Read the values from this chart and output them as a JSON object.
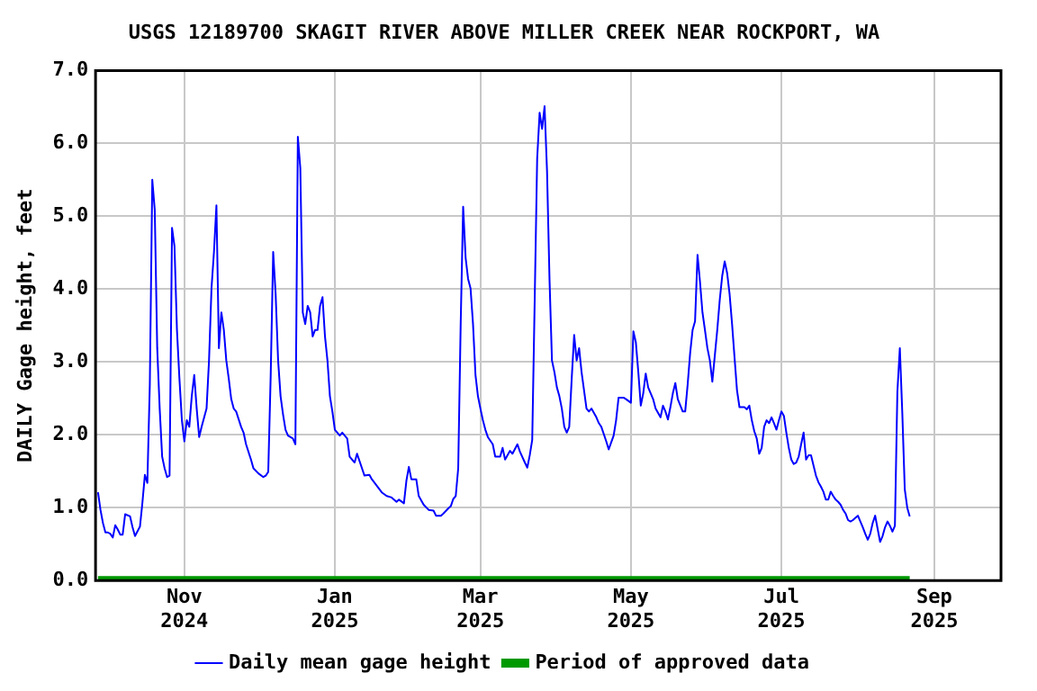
{
  "chart_data": {
    "type": "line",
    "title": "USGS 12189700 SKAGIT RIVER ABOVE MILLER CREEK NEAR ROCKPORT, WA",
    "ylabel": "DAILY Gage height, feet",
    "xlim": [
      "2024-09-26",
      "2025-09-28"
    ],
    "xticks": [
      {
        "value": "2024-11-01",
        "label": "Nov 2024"
      },
      {
        "value": "2025-01-01",
        "label": "Jan 2025"
      },
      {
        "value": "2025-03-01",
        "label": "Mar 2025"
      },
      {
        "value": "2025-05-01",
        "label": "May 2025"
      },
      {
        "value": "2025-07-01",
        "label": "Jul 2025"
      },
      {
        "value": "2025-09-01",
        "label": "Sep 2025"
      }
    ],
    "ylim": [
      0,
      7
    ],
    "yticks": [
      {
        "value": 0,
        "label": "0.0"
      },
      {
        "value": 1,
        "label": "1.0"
      },
      {
        "value": 2,
        "label": "2.0"
      },
      {
        "value": 3,
        "label": "3.0"
      },
      {
        "value": 4,
        "label": "4.0"
      },
      {
        "value": 5,
        "label": "5.0"
      },
      {
        "value": 6,
        "label": "6.0"
      },
      {
        "value": 7,
        "label": "7.0"
      }
    ],
    "grid": true,
    "legend": "bottom",
    "marker": "none",
    "line_style": "solid",
    "series": [
      {
        "name": "Daily mean gage height",
        "color": "#0000ff",
        "x": [
          "2024-09-27",
          "2024-09-28",
          "2024-09-29",
          "2024-09-30",
          "2024-10-01",
          "2024-10-02",
          "2024-10-03",
          "2024-10-04",
          "2024-10-05",
          "2024-10-06",
          "2024-10-07",
          "2024-10-08",
          "2024-10-10",
          "2024-10-11",
          "2024-10-12",
          "2024-10-14",
          "2024-10-15",
          "2024-10-16",
          "2024-10-17",
          "2024-10-18",
          "2024-10-19",
          "2024-10-20",
          "2024-10-21",
          "2024-10-22",
          "2024-10-23",
          "2024-10-24",
          "2024-10-25",
          "2024-10-26",
          "2024-10-27",
          "2024-10-28",
          "2024-10-29",
          "2024-10-30",
          "2024-10-31",
          "2024-11-01",
          "2024-11-02",
          "2024-11-03",
          "2024-11-04",
          "2024-11-05",
          "2024-11-06",
          "2024-11-07",
          "2024-11-08",
          "2024-11-10",
          "2024-11-11",
          "2024-11-12",
          "2024-11-13",
          "2024-11-14",
          "2024-11-15",
          "2024-11-16",
          "2024-11-17",
          "2024-11-18",
          "2024-11-19",
          "2024-11-20",
          "2024-11-21",
          "2024-11-22",
          "2024-11-24",
          "2024-11-25",
          "2024-11-26",
          "2024-11-28",
          "2024-11-29",
          "2024-12-01",
          "2024-12-03",
          "2024-12-04",
          "2024-12-05",
          "2024-12-06",
          "2024-12-07",
          "2024-12-08",
          "2024-12-09",
          "2024-12-10",
          "2024-12-11",
          "2024-12-12",
          "2024-12-13",
          "2024-12-15",
          "2024-12-16",
          "2024-12-17",
          "2024-12-18",
          "2024-12-19",
          "2024-12-20",
          "2024-12-21",
          "2024-12-22",
          "2024-12-23",
          "2024-12-24",
          "2024-12-25",
          "2024-12-26",
          "2024-12-27",
          "2024-12-28",
          "2024-12-29",
          "2024-12-30",
          "2024-12-31",
          "2025-01-01",
          "2025-01-03",
          "2025-01-04",
          "2025-01-06",
          "2025-01-07",
          "2025-01-09",
          "2025-01-10",
          "2025-01-12",
          "2025-01-13",
          "2025-01-15",
          "2025-01-16",
          "2025-01-18",
          "2025-01-20",
          "2025-01-22",
          "2025-01-24",
          "2025-01-26",
          "2025-01-27",
          "2025-01-29",
          "2025-01-30",
          "2025-01-31",
          "2025-02-01",
          "2025-02-03",
          "2025-02-04",
          "2025-02-06",
          "2025-02-08",
          "2025-02-10",
          "2025-02-11",
          "2025-02-13",
          "2025-02-14",
          "2025-02-16",
          "2025-02-17",
          "2025-02-18",
          "2025-02-19",
          "2025-02-20",
          "2025-02-21",
          "2025-02-22",
          "2025-02-23",
          "2025-02-24",
          "2025-02-25",
          "2025-02-26",
          "2025-02-27",
          "2025-02-28",
          "2025-03-01",
          "2025-03-02",
          "2025-03-03",
          "2025-03-04",
          "2025-03-06",
          "2025-03-07",
          "2025-03-09",
          "2025-03-10",
          "2025-03-11",
          "2025-03-13",
          "2025-03-14",
          "2025-03-16",
          "2025-03-17",
          "2025-03-19",
          "2025-03-20",
          "2025-03-21",
          "2025-03-22",
          "2025-03-23",
          "2025-03-24",
          "2025-03-25",
          "2025-03-26",
          "2025-03-27",
          "2025-03-28",
          "2025-03-29",
          "2025-03-30",
          "2025-03-31",
          "2025-04-01",
          "2025-04-02",
          "2025-04-03",
          "2025-04-04",
          "2025-04-05",
          "2025-04-06",
          "2025-04-07",
          "2025-04-08",
          "2025-04-09",
          "2025-04-10",
          "2025-04-11",
          "2025-04-12",
          "2025-04-13",
          "2025-04-14",
          "2025-04-15",
          "2025-04-17",
          "2025-04-18",
          "2025-04-19",
          "2025-04-21",
          "2025-04-22",
          "2025-04-24",
          "2025-04-25",
          "2025-04-26",
          "2025-04-28",
          "2025-04-29",
          "2025-05-01",
          "2025-05-02",
          "2025-05-03",
          "2025-05-04",
          "2025-05-05",
          "2025-05-06",
          "2025-05-07",
          "2025-05-08",
          "2025-05-10",
          "2025-05-11",
          "2025-05-13",
          "2025-05-14",
          "2025-05-15",
          "2025-05-16",
          "2025-05-17",
          "2025-05-18",
          "2025-05-19",
          "2025-05-20",
          "2025-05-22",
          "2025-05-23",
          "2025-05-24",
          "2025-05-25",
          "2025-05-26",
          "2025-05-27",
          "2025-05-28",
          "2025-05-29",
          "2025-05-30",
          "2025-05-31",
          "2025-06-01",
          "2025-06-02",
          "2025-06-03",
          "2025-06-05",
          "2025-06-06",
          "2025-06-07",
          "2025-06-08",
          "2025-06-09",
          "2025-06-10",
          "2025-06-11",
          "2025-06-12",
          "2025-06-13",
          "2025-06-14",
          "2025-06-16",
          "2025-06-17",
          "2025-06-18",
          "2025-06-19",
          "2025-06-20",
          "2025-06-21",
          "2025-06-22",
          "2025-06-23",
          "2025-06-24",
          "2025-06-25",
          "2025-06-26",
          "2025-06-27",
          "2025-06-28",
          "2025-06-29",
          "2025-06-30",
          "2025-07-01",
          "2025-07-02",
          "2025-07-03",
          "2025-07-04",
          "2025-07-05",
          "2025-07-06",
          "2025-07-07",
          "2025-07-08",
          "2025-07-09",
          "2025-07-10",
          "2025-07-11",
          "2025-07-12",
          "2025-07-13",
          "2025-07-14",
          "2025-07-15",
          "2025-07-16",
          "2025-07-17",
          "2025-07-18",
          "2025-07-19",
          "2025-07-20",
          "2025-07-21",
          "2025-07-22",
          "2025-07-23",
          "2025-07-24",
          "2025-07-25",
          "2025-07-26",
          "2025-07-27",
          "2025-07-28",
          "2025-07-29",
          "2025-07-30",
          "2025-07-31",
          "2025-08-01",
          "2025-08-02",
          "2025-08-03",
          "2025-08-04",
          "2025-08-05",
          "2025-08-06",
          "2025-08-07",
          "2025-08-08",
          "2025-08-09",
          "2025-08-10",
          "2025-08-11",
          "2025-08-12",
          "2025-08-13",
          "2025-08-14",
          "2025-08-15",
          "2025-08-16",
          "2025-08-17",
          "2025-08-18",
          "2025-08-19",
          "2025-08-20",
          "2025-08-21",
          "2025-08-22"
        ],
        "values": [
          1.21,
          0.97,
          0.79,
          0.66,
          0.66,
          0.64,
          0.59,
          0.76,
          0.7,
          0.63,
          0.63,
          0.91,
          0.88,
          0.73,
          0.61,
          0.74,
          1.07,
          1.45,
          1.34,
          2.69,
          5.5,
          5.09,
          3.19,
          2.36,
          1.7,
          1.54,
          1.42,
          1.44,
          4.84,
          4.59,
          3.44,
          2.77,
          2.2,
          1.91,
          2.2,
          2.11,
          2.53,
          2.82,
          2.36,
          1.97,
          2.11,
          2.36,
          3.02,
          4.01,
          4.51,
          5.15,
          3.19,
          3.68,
          3.44,
          3.02,
          2.77,
          2.49,
          2.36,
          2.32,
          2.11,
          2.03,
          1.87,
          1.66,
          1.54,
          1.47,
          1.42,
          1.44,
          1.49,
          2.82,
          4.51,
          3.93,
          3.02,
          2.53,
          2.28,
          2.07,
          1.99,
          1.95,
          1.87,
          6.09,
          5.66,
          3.68,
          3.52,
          3.77,
          3.68,
          3.35,
          3.44,
          3.44,
          3.77,
          3.89,
          3.35,
          3.02,
          2.53,
          2.32,
          2.07,
          1.99,
          2.03,
          1.95,
          1.7,
          1.62,
          1.74,
          1.54,
          1.44,
          1.45,
          1.39,
          1.3,
          1.21,
          1.16,
          1.14,
          1.08,
          1.11,
          1.06,
          1.37,
          1.56,
          1.39,
          1.39,
          1.16,
          1.04,
          0.97,
          0.96,
          0.89,
          0.89,
          0.92,
          0.99,
          1.02,
          1.12,
          1.16,
          1.54,
          3.52,
          5.13,
          4.43,
          4.14,
          4.01,
          3.52,
          2.82,
          2.53,
          2.36,
          2.2,
          2.07,
          1.97,
          1.87,
          1.7,
          1.7,
          1.82,
          1.66,
          1.78,
          1.74,
          1.87,
          1.77,
          1.62,
          1.55,
          1.72,
          1.93,
          3.85,
          5.79,
          6.42,
          6.2,
          6.51,
          5.62,
          4.14,
          3.02,
          2.86,
          2.65,
          2.53,
          2.36,
          2.11,
          2.03,
          2.11,
          2.77,
          3.37,
          3.02,
          3.19,
          2.86,
          2.61,
          2.36,
          2.32,
          2.36,
          2.24,
          2.16,
          2.11,
          1.91,
          1.8,
          1.99,
          2.2,
          2.51,
          2.51,
          2.49,
          2.44,
          3.42,
          3.27,
          2.86,
          2.4,
          2.57,
          2.84,
          2.65,
          2.49,
          2.36,
          2.24,
          2.4,
          2.32,
          2.21,
          2.38,
          2.57,
          2.71,
          2.49,
          2.32,
          2.32,
          2.69,
          3.12,
          3.44,
          3.56,
          4.47,
          4.1,
          3.68,
          3.44,
          3.19,
          3.02,
          2.73,
          3.44,
          3.85,
          4.18,
          4.38,
          4.22,
          3.93,
          3.52,
          3.06,
          2.61,
          2.38,
          2.38,
          2.35,
          2.4,
          2.2,
          2.05,
          1.95,
          1.74,
          1.82,
          2.11,
          2.2,
          2.16,
          2.24,
          2.16,
          2.07,
          2.2,
          2.32,
          2.26,
          2.03,
          1.82,
          1.66,
          1.6,
          1.62,
          1.7,
          1.87,
          2.03,
          1.66,
          1.72,
          1.72,
          1.58,
          1.44,
          1.35,
          1.29,
          1.22,
          1.11,
          1.11,
          1.22,
          1.16,
          1.11,
          1.08,
          1.04,
          0.97,
          0.92,
          0.83,
          0.81,
          0.83,
          0.86,
          0.89,
          0.81,
          0.73,
          0.64,
          0.56,
          0.64,
          0.79,
          0.89,
          0.71,
          0.53,
          0.61,
          0.73,
          0.81,
          0.75,
          0.67,
          0.75,
          2.59,
          3.19,
          2.3,
          1.25,
          1.0,
          0.88
        ]
      },
      {
        "name": "Period of approved data",
        "color": "#009900",
        "x": [
          "2024-09-27",
          "2025-08-22"
        ],
        "values": [
          0,
          0
        ]
      }
    ]
  }
}
